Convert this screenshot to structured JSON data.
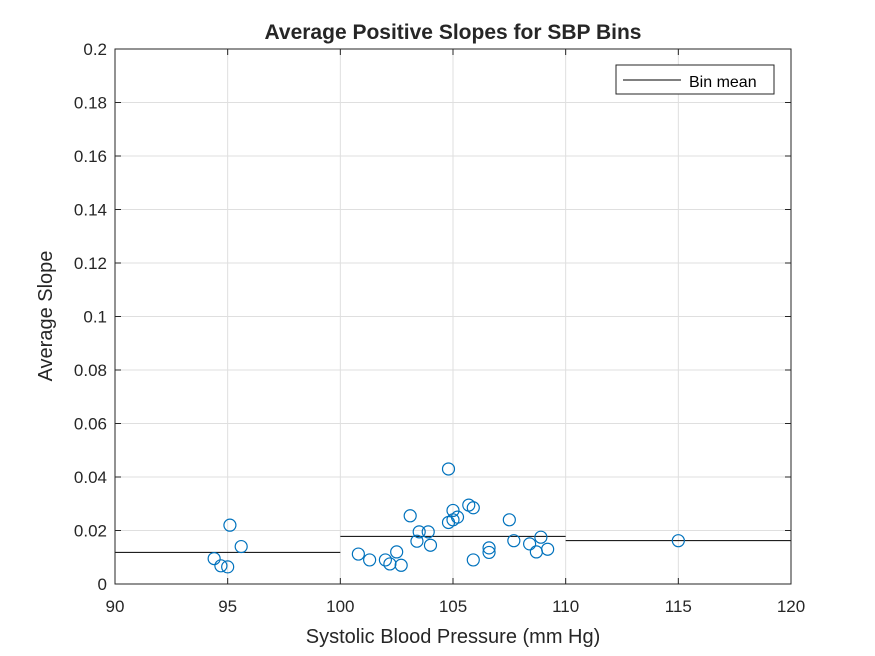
{
  "chart_data": {
    "type": "scatter",
    "title": "Average Positive Slopes for SBP Bins",
    "xlabel": "Systolic Blood Pressure (mm Hg)",
    "ylabel": "Average Slope",
    "xlim": [
      90,
      120
    ],
    "ylim": [
      0,
      0.2
    ],
    "xticks": [
      "90",
      "95",
      "100",
      "105",
      "110",
      "115",
      "120"
    ],
    "yticks": [
      "0",
      "0.02",
      "0.04",
      "0.06",
      "0.08",
      "0.1",
      "0.12",
      "0.14",
      "0.16",
      "0.18",
      "0.2"
    ],
    "grid": true,
    "legend": {
      "placement": "top-right",
      "entries": [
        "Bin mean"
      ]
    },
    "colors": {
      "points": "#0072bd",
      "mean_line": "#000000"
    },
    "points": [
      {
        "x": 94.4,
        "y": 0.0095
      },
      {
        "x": 94.7,
        "y": 0.0068
      },
      {
        "x": 95.1,
        "y": 0.022
      },
      {
        "x": 95.0,
        "y": 0.0064
      },
      {
        "x": 95.6,
        "y": 0.014
      },
      {
        "x": 100.8,
        "y": 0.0112
      },
      {
        "x": 101.3,
        "y": 0.009
      },
      {
        "x": 102.0,
        "y": 0.009
      },
      {
        "x": 102.2,
        "y": 0.0075
      },
      {
        "x": 102.5,
        "y": 0.012
      },
      {
        "x": 102.7,
        "y": 0.007
      },
      {
        "x": 103.1,
        "y": 0.0255
      },
      {
        "x": 103.4,
        "y": 0.016
      },
      {
        "x": 103.5,
        "y": 0.0195
      },
      {
        "x": 103.9,
        "y": 0.0195
      },
      {
        "x": 104.0,
        "y": 0.0145
      },
      {
        "x": 104.8,
        "y": 0.043
      },
      {
        "x": 104.8,
        "y": 0.023
      },
      {
        "x": 105.0,
        "y": 0.0275
      },
      {
        "x": 105.0,
        "y": 0.024
      },
      {
        "x": 105.2,
        "y": 0.025
      },
      {
        "x": 105.7,
        "y": 0.0295
      },
      {
        "x": 105.9,
        "y": 0.0285
      },
      {
        "x": 105.9,
        "y": 0.009
      },
      {
        "x": 106.6,
        "y": 0.0135
      },
      {
        "x": 106.6,
        "y": 0.0118
      },
      {
        "x": 107.5,
        "y": 0.024
      },
      {
        "x": 107.7,
        "y": 0.0162
      },
      {
        "x": 108.4,
        "y": 0.015
      },
      {
        "x": 108.7,
        "y": 0.012
      },
      {
        "x": 108.9,
        "y": 0.0175
      },
      {
        "x": 109.2,
        "y": 0.013
      },
      {
        "x": 115.0,
        "y": 0.0162
      }
    ],
    "bin_means": [
      {
        "x_start": 90,
        "x_end": 100,
        "y": 0.0118
      },
      {
        "x_start": 100,
        "x_end": 110,
        "y": 0.0178
      },
      {
        "x_start": 110,
        "x_end": 120,
        "y": 0.0162
      }
    ]
  }
}
